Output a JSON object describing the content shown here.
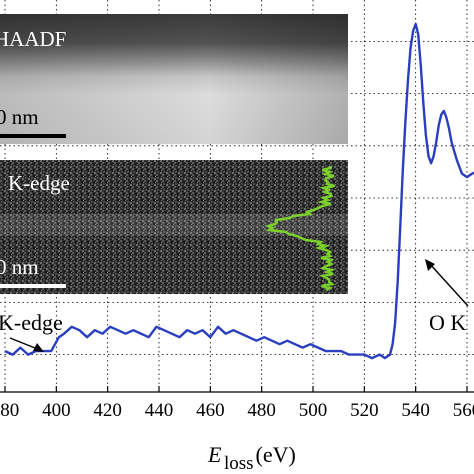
{
  "chart_data": {
    "type": "line",
    "xlabel": "E",
    "xlabel_sub": "loss",
    "xlabel_unit": " (eV)",
    "xlim": [
      380,
      565
    ],
    "ylim": [
      0,
      1
    ],
    "x_ticks": [
      380,
      400,
      420,
      440,
      460,
      480,
      500,
      520,
      540,
      560
    ],
    "x_tick_labels": [
      "380",
      "400",
      "420",
      "440",
      "460",
      "480",
      "500",
      "520",
      "540",
      "560"
    ],
    "grid": true,
    "series": [
      {
        "color": "#2a3fc0",
        "x": [
          380,
          383,
          386,
          389,
          392,
          395,
          398,
          401,
          403,
          406,
          409,
          412,
          415,
          418,
          421,
          424,
          427,
          430,
          433,
          436,
          439,
          442,
          445,
          448,
          451,
          454,
          457,
          460,
          463,
          466,
          469,
          472,
          475,
          478,
          481,
          484,
          487,
          490,
          493,
          496,
          499,
          502,
          505,
          508,
          511,
          514,
          517,
          520,
          523,
          526,
          528,
          530,
          531,
          532,
          533,
          534,
          535,
          536,
          537,
          538,
          539,
          540,
          541,
          542,
          543,
          544,
          545,
          546,
          547,
          548,
          549,
          550,
          551,
          552,
          553,
          554,
          556,
          558,
          560,
          562,
          565
        ],
        "y": [
          0.06,
          0.05,
          0.07,
          0.05,
          0.06,
          0.06,
          0.06,
          0.1,
          0.11,
          0.13,
          0.12,
          0.1,
          0.12,
          0.11,
          0.13,
          0.12,
          0.11,
          0.12,
          0.11,
          0.1,
          0.13,
          0.12,
          0.11,
          0.1,
          0.12,
          0.11,
          0.12,
          0.1,
          0.13,
          0.11,
          0.12,
          0.11,
          0.1,
          0.09,
          0.1,
          0.09,
          0.08,
          0.09,
          0.08,
          0.07,
          0.08,
          0.07,
          0.06,
          0.06,
          0.06,
          0.05,
          0.05,
          0.05,
          0.04,
          0.05,
          0.04,
          0.05,
          0.08,
          0.14,
          0.26,
          0.42,
          0.58,
          0.72,
          0.84,
          0.93,
          0.98,
          1.0,
          0.97,
          0.88,
          0.77,
          0.68,
          0.62,
          0.6,
          0.62,
          0.66,
          0.71,
          0.74,
          0.75,
          0.73,
          0.7,
          0.66,
          0.61,
          0.57,
          0.56,
          0.57,
          0.58
        ]
      }
    ],
    "annotations": {
      "left_edge_label": "K-edge",
      "o_edge_label": "O K"
    }
  },
  "inset_top": {
    "label": "HAADF",
    "scale_label": "0 nm"
  },
  "inset_bottom": {
    "label": "K-edge",
    "scale_label": "0 nm",
    "profile_color": "#7bd12a"
  }
}
